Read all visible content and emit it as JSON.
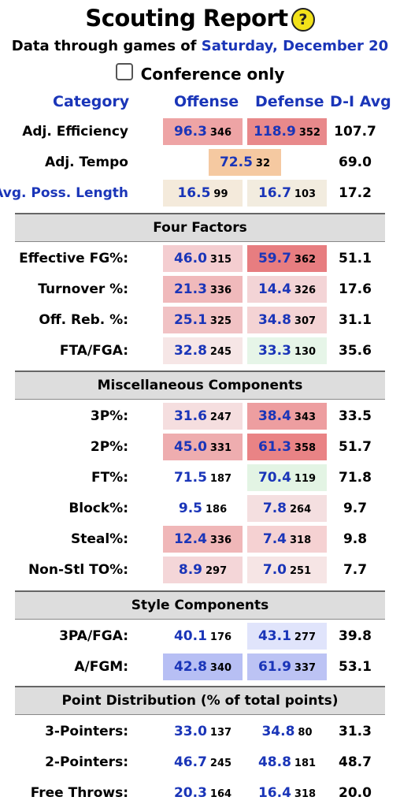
{
  "header": {
    "title": "Scouting Report",
    "help_glyph": "?",
    "subtitle_prefix": "Data through games of",
    "subtitle_date": "Saturday, December 20",
    "conference_only_label": "Conference only"
  },
  "columns": {
    "category": "Category",
    "offense": "Offense",
    "defense": "Defense",
    "avg": "D-I Avg"
  },
  "top_rows": {
    "efficiency": {
      "label": "Adj. Efficiency",
      "off": "96.3",
      "off_rank": "346",
      "def": "118.9",
      "def_rank": "352",
      "avg": "107.7"
    },
    "tempo": {
      "label": "Adj. Tempo",
      "val": "72.5",
      "rank": "32",
      "avg": "69.0"
    },
    "poss": {
      "label": "Avg. Poss. Length",
      "off": "16.5",
      "off_rank": "99",
      "def": "16.7",
      "def_rank": "103",
      "avg": "17.2"
    }
  },
  "four_factors": {
    "title": "Four Factors",
    "efg": {
      "label": "Effective FG%:",
      "off": "46.0",
      "off_rank": "315",
      "def": "59.7",
      "def_rank": "362",
      "avg": "51.1"
    },
    "to": {
      "label": "Turnover %:",
      "off": "21.3",
      "off_rank": "336",
      "def": "14.4",
      "def_rank": "326",
      "avg": "17.6"
    },
    "orb": {
      "label": "Off. Reb. %:",
      "off": "25.1",
      "off_rank": "325",
      "def": "34.8",
      "def_rank": "307",
      "avg": "31.1"
    },
    "ftr": {
      "label": "FTA/FGA:",
      "off": "32.8",
      "off_rank": "245",
      "def": "33.3",
      "def_rank": "130",
      "avg": "35.6"
    }
  },
  "misc": {
    "title": "Miscellaneous Components",
    "three_p": {
      "label": "3P%:",
      "off": "31.6",
      "off_rank": "247",
      "def": "38.4",
      "def_rank": "343",
      "avg": "33.5"
    },
    "two_p": {
      "label": "2P%:",
      "off": "45.0",
      "off_rank": "331",
      "def": "61.3",
      "def_rank": "358",
      "avg": "51.7"
    },
    "ft": {
      "label": "FT%:",
      "off": "71.5",
      "off_rank": "187",
      "def": "70.4",
      "def_rank": "119",
      "avg": "71.8"
    },
    "blk": {
      "label": "Block%:",
      "off": "9.5",
      "off_rank": "186",
      "def": "7.8",
      "def_rank": "264",
      "avg": "9.7"
    },
    "stl": {
      "label": "Steal%:",
      "off": "12.4",
      "off_rank": "336",
      "def": "7.4",
      "def_rank": "318",
      "avg": "9.8"
    },
    "nst": {
      "label": "Non-Stl TO%:",
      "off": "8.9",
      "off_rank": "297",
      "def": "7.0",
      "def_rank": "251",
      "avg": "7.7"
    }
  },
  "style": {
    "title": "Style Components",
    "three_pa": {
      "label": "3PA/FGA:",
      "off": "40.1",
      "off_rank": "176",
      "def": "43.1",
      "def_rank": "277",
      "avg": "39.8"
    },
    "afgm": {
      "label": "A/FGM:",
      "off": "42.8",
      "off_rank": "340",
      "def": "61.9",
      "def_rank": "337",
      "avg": "53.1"
    }
  },
  "points": {
    "title": "Point Distribution (% of total points)",
    "three": {
      "label": "3-Pointers:",
      "off": "33.0",
      "off_rank": "137",
      "def": "34.8",
      "def_rank": "80",
      "avg": "31.3"
    },
    "two": {
      "label": "2-Pointers:",
      "off": "46.7",
      "off_rank": "245",
      "def": "48.8",
      "def_rank": "181",
      "avg": "48.7"
    },
    "ft": {
      "label": "Free Throws:",
      "off": "20.3",
      "off_rank": "164",
      "def": "16.4",
      "def_rank": "318",
      "avg": "20.0"
    }
  },
  "cell_colors": {
    "efficiency_off": "#eea4a5",
    "efficiency_def": "#e8898b",
    "tempo": "#f5c9a1",
    "poss_off": "#f4eadb",
    "poss_def": "#f2ecdf",
    "efg_off": "#f4cdd0",
    "efg_def": "#e77d80",
    "to_off": "#f0b9bb",
    "to_def": "#f3d4d6",
    "orb_off": "#f1c2c4",
    "orb_def": "#f4d3d4",
    "ftr_off": "#f6e6e6",
    "ftr_def": "#e6f5e8",
    "three_p_off": "#f5dedf",
    "three_p_def": "#ed9ea0",
    "two_p_off": "#eeadaf",
    "two_p_def": "#e98385",
    "ft_def": "#e3f4e4",
    "blk_def": "#f4dfe0",
    "stl_off": "#f0b7b8",
    "stl_def": "#f5d1d2",
    "nst_off": "#f4d6d8",
    "nst_def": "#f6e5e5",
    "three_pa_def": "#e0e4fb",
    "afgm_off": "#b7bff4",
    "afgm_def": "#bcc3f4"
  }
}
